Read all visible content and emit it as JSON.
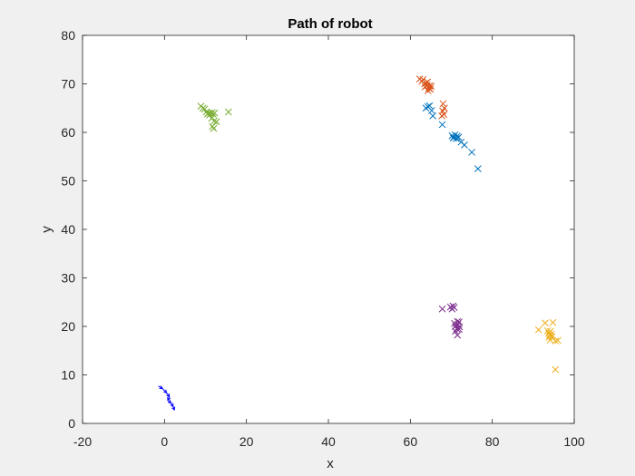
{
  "chart_data": {
    "type": "scatter",
    "title": "Path of robot",
    "xlabel": "x",
    "ylabel": "y",
    "xlim": [
      -20,
      100
    ],
    "ylim": [
      0,
      80
    ],
    "xticks": [
      -20,
      0,
      20,
      40,
      60,
      80,
      100
    ],
    "yticks": [
      0,
      10,
      20,
      30,
      40,
      50,
      60,
      70,
      80
    ],
    "xtick_labels": [
      "-20",
      "0",
      "20",
      "40",
      "60",
      "80",
      "100"
    ],
    "ytick_labels": [
      "0",
      "10",
      "20",
      "30",
      "40",
      "50",
      "60",
      "70",
      "80"
    ],
    "grid": false,
    "background": "#ffffff",
    "series": [
      {
        "color": "#0072bd",
        "marker": "x",
        "points": [
          [
            63.8,
            65.0
          ],
          [
            64.3,
            65.3
          ],
          [
            64.7,
            65.5
          ],
          [
            65.2,
            64.5
          ],
          [
            65.5,
            63.4
          ],
          [
            67.8,
            61.6
          ],
          [
            70.2,
            59.3
          ],
          [
            70.6,
            59.0
          ],
          [
            70.9,
            59.5
          ],
          [
            71.2,
            58.7
          ],
          [
            71.4,
            59.2
          ],
          [
            70.5,
            58.8
          ],
          [
            71.8,
            59.0
          ],
          [
            72.4,
            58.0
          ],
          [
            73.2,
            57.4
          ],
          [
            75.0,
            55.9
          ],
          [
            76.5,
            52.5
          ]
        ]
      },
      {
        "color": "#d95319",
        "marker": "x",
        "points": [
          [
            62.3,
            71.0
          ],
          [
            62.8,
            70.5
          ],
          [
            63.1,
            70.9
          ],
          [
            63.5,
            70.0
          ],
          [
            63.6,
            69.4
          ],
          [
            63.9,
            70.2
          ],
          [
            64.1,
            69.7
          ],
          [
            64.2,
            70.4
          ],
          [
            64.5,
            69.1
          ],
          [
            64.7,
            69.6
          ],
          [
            64.9,
            68.9
          ],
          [
            65.1,
            69.5
          ],
          [
            64.3,
            68.6
          ],
          [
            68.0,
            65.9
          ],
          [
            68.3,
            65.0
          ],
          [
            67.9,
            64.4
          ],
          [
            68.2,
            63.7
          ],
          [
            67.7,
            63.4
          ]
        ]
      },
      {
        "color": "#edb120",
        "marker": "x",
        "points": [
          [
            91.3,
            19.3
          ],
          [
            92.9,
            20.7
          ],
          [
            93.5,
            19.1
          ],
          [
            93.8,
            18.6
          ],
          [
            94.0,
            18.2
          ],
          [
            94.2,
            19.0
          ],
          [
            94.4,
            18.4
          ],
          [
            93.9,
            17.8
          ],
          [
            94.1,
            17.2
          ],
          [
            94.8,
            20.8
          ],
          [
            94.6,
            17.9
          ],
          [
            95.4,
            17.0
          ],
          [
            96.0,
            17.1
          ],
          [
            95.4,
            11.1
          ]
        ]
      },
      {
        "color": "#7e2f8e",
        "marker": "x",
        "points": [
          [
            67.8,
            23.6
          ],
          [
            69.8,
            24.0
          ],
          [
            70.2,
            23.6
          ],
          [
            70.7,
            23.9
          ],
          [
            70.4,
            24.2
          ],
          [
            70.8,
            20.6
          ],
          [
            71.0,
            20.0
          ],
          [
            71.3,
            19.5
          ],
          [
            71.6,
            20.4
          ],
          [
            71.9,
            20.9
          ],
          [
            71.5,
            21.0
          ],
          [
            71.2,
            20.2
          ],
          [
            71.9,
            19.4
          ],
          [
            71.0,
            19.0
          ],
          [
            71.5,
            18.2
          ],
          [
            72.0,
            19.9
          ]
        ]
      },
      {
        "color": "#77ac30",
        "marker": "x",
        "points": [
          [
            8.9,
            65.4
          ],
          [
            9.4,
            65.0
          ],
          [
            9.8,
            64.8
          ],
          [
            10.2,
            64.2
          ],
          [
            10.5,
            63.8
          ],
          [
            10.8,
            64.0
          ],
          [
            11.0,
            63.6
          ],
          [
            11.3,
            63.9
          ],
          [
            11.6,
            64.1
          ],
          [
            11.9,
            63.7
          ],
          [
            12.2,
            64.0
          ],
          [
            11.5,
            62.9
          ],
          [
            12.1,
            62.3
          ],
          [
            11.7,
            61.2
          ],
          [
            12.0,
            60.8
          ],
          [
            12.7,
            62.2
          ],
          [
            15.6,
            64.2
          ]
        ]
      }
    ],
    "trajectory": {
      "color": "#0000ff",
      "marker": "arrows",
      "segments": [
        [
          -1.5,
          7.7,
          -0.5,
          7.2
        ],
        [
          -0.5,
          7.2,
          0.5,
          6.3
        ],
        [
          0.5,
          6.3,
          1.2,
          5.5
        ],
        [
          1.2,
          5.5,
          0.8,
          4.8
        ],
        [
          0.8,
          4.8,
          1.6,
          4.2
        ],
        [
          1.6,
          4.2,
          2.1,
          3.5
        ],
        [
          2.1,
          3.5,
          2.4,
          2.8
        ]
      ]
    }
  }
}
